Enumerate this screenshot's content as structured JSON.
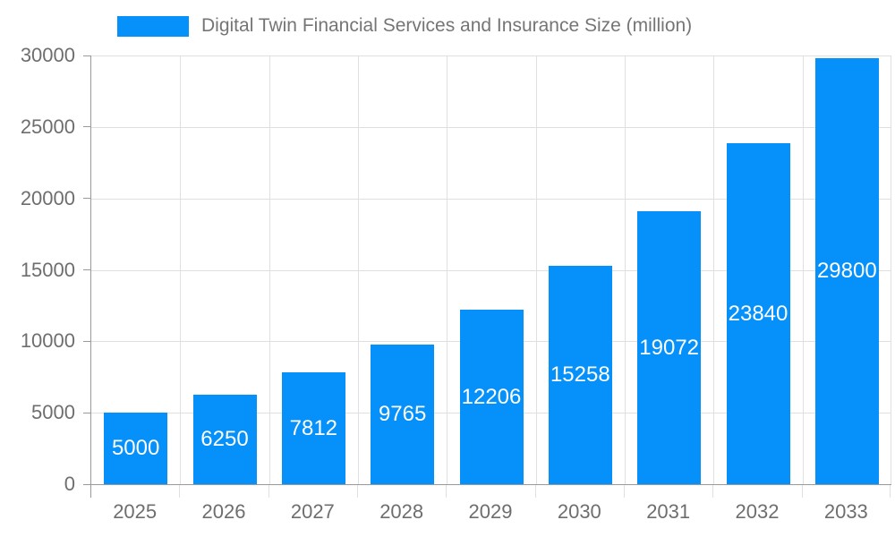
{
  "chart_data": {
    "type": "bar",
    "title": "Digital Twin Financial Services and Insurance Size (million)",
    "categories": [
      "2025",
      "2026",
      "2027",
      "2028",
      "2029",
      "2030",
      "2031",
      "2032",
      "2033"
    ],
    "values": [
      5000,
      6250,
      7812,
      9765,
      12206,
      15258,
      19072,
      23840,
      29800
    ],
    "xlabel": "",
    "ylabel": "",
    "ylim": [
      0,
      30000
    ],
    "yticks": [
      0,
      5000,
      10000,
      15000,
      20000,
      25000,
      30000
    ],
    "legend_position": "top",
    "grid": true,
    "bar_labels_inside": true,
    "colors": {
      "bar": "#0590fa",
      "bar_label": "#ffffff",
      "axis_text": "#6e6e6e",
      "title_text": "#757575",
      "grid_line": "#e0e0e0",
      "axis_line": "#999999",
      "background": "#ffffff"
    }
  }
}
